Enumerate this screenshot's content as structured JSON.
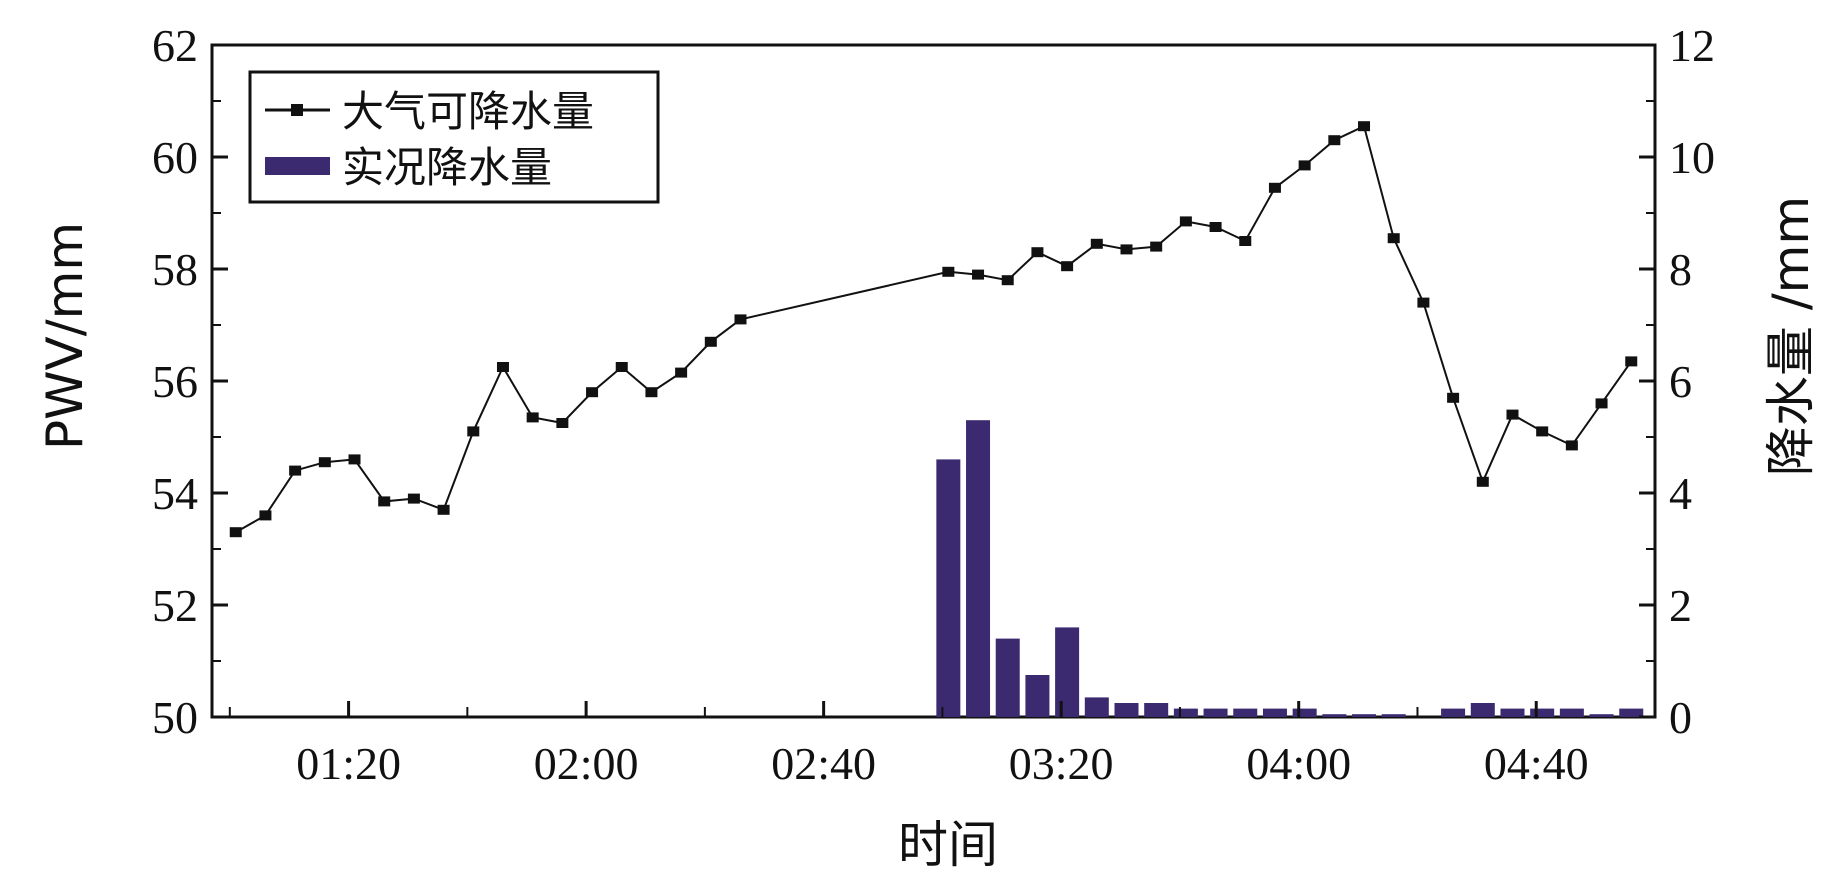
{
  "chart_data": {
    "type": "line+bar",
    "xlabel": "时间",
    "ylabel_left": "PWV/mm",
    "ylabel_right": "降水量 /mm",
    "y_left": {
      "min": 50,
      "max": 62,
      "ticks": [
        "50",
        "52",
        "54",
        "56",
        "58",
        "60",
        "62"
      ]
    },
    "y_right": {
      "min": 0,
      "max": 12,
      "ticks": [
        "0",
        "2",
        "4",
        "6",
        "8",
        "10",
        "12"
      ]
    },
    "x_range": [
      "00:57",
      "05:00"
    ],
    "x_ticks": [
      "01:20",
      "02:00",
      "02:40",
      "03:20",
      "04:00",
      "04:40"
    ],
    "x_minor_ticks": [
      "01:00",
      "01:40",
      "02:20",
      "03:00",
      "03:40",
      "04:20"
    ],
    "legend": {
      "position": "top-left"
    },
    "colors": {
      "line": "#111111",
      "bars": "#3b2a70"
    },
    "series": [
      {
        "name": "大气可降水量",
        "type": "line",
        "axis": "left",
        "points": [
          [
            "01:01",
            53.3
          ],
          [
            "01:06",
            53.6
          ],
          [
            "01:11",
            54.4
          ],
          [
            "01:16",
            54.55
          ],
          [
            "01:21",
            54.6
          ],
          [
            "01:26",
            53.85
          ],
          [
            "01:31",
            53.9
          ],
          [
            "01:36",
            53.7
          ],
          [
            "01:41",
            55.1
          ],
          [
            "01:46",
            56.25
          ],
          [
            "01:51",
            55.35
          ],
          [
            "01:56",
            55.25
          ],
          [
            "02:01",
            55.8
          ],
          [
            "02:06",
            56.25
          ],
          [
            "02:11",
            55.8
          ],
          [
            "02:16",
            56.15
          ],
          [
            "02:21",
            56.7
          ],
          [
            "02:26",
            57.1
          ],
          [
            "03:01",
            57.95
          ],
          [
            "03:06",
            57.9
          ],
          [
            "03:11",
            57.8
          ],
          [
            "03:16",
            58.3
          ],
          [
            "03:21",
            58.05
          ],
          [
            "03:26",
            58.45
          ],
          [
            "03:31",
            58.35
          ],
          [
            "03:36",
            58.4
          ],
          [
            "03:41",
            58.85
          ],
          [
            "03:46",
            58.75
          ],
          [
            "03:51",
            58.5
          ],
          [
            "03:56",
            59.45
          ],
          [
            "04:01",
            59.85
          ],
          [
            "04:06",
            60.3
          ],
          [
            "04:11",
            60.55
          ],
          [
            "04:16",
            58.55
          ],
          [
            "04:21",
            57.4
          ],
          [
            "04:26",
            55.7
          ],
          [
            "04:31",
            54.2
          ],
          [
            "04:36",
            55.4
          ],
          [
            "04:41",
            55.1
          ],
          [
            "04:46",
            54.85
          ],
          [
            "04:51",
            55.6
          ],
          [
            "04:56",
            56.35
          ]
        ]
      },
      {
        "name": "实况降水量",
        "type": "bar",
        "axis": "right",
        "points": [
          [
            "03:01",
            4.6
          ],
          [
            "03:06",
            5.3
          ],
          [
            "03:11",
            1.4
          ],
          [
            "03:16",
            0.75
          ],
          [
            "03:21",
            1.6
          ],
          [
            "03:26",
            0.35
          ],
          [
            "03:31",
            0.25
          ],
          [
            "03:36",
            0.25
          ],
          [
            "03:41",
            0.15
          ],
          [
            "03:46",
            0.15
          ],
          [
            "03:51",
            0.15
          ],
          [
            "03:56",
            0.15
          ],
          [
            "04:01",
            0.15
          ],
          [
            "04:06",
            0.05
          ],
          [
            "04:11",
            0.05
          ],
          [
            "04:16",
            0.05
          ],
          [
            "04:26",
            0.15
          ],
          [
            "04:31",
            0.25
          ],
          [
            "04:36",
            0.15
          ],
          [
            "04:41",
            0.15
          ],
          [
            "04:46",
            0.15
          ],
          [
            "04:51",
            0.05
          ],
          [
            "04:56",
            0.15
          ]
        ]
      }
    ]
  }
}
